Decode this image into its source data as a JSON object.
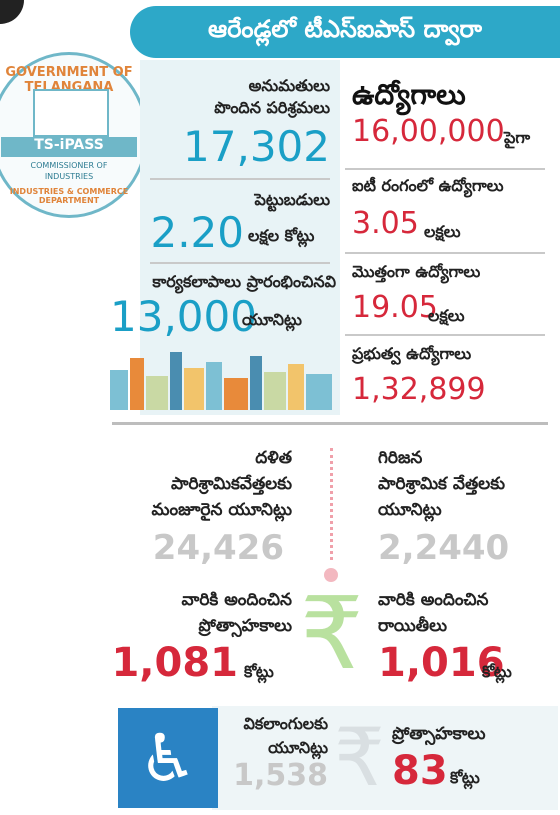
{
  "header": {
    "title": "ఆరేండ్లలో టీఎస్ఐపాస్ ద్వారా"
  },
  "seal": {
    "top": "GOVERNMENT OF TELANGANA",
    "name": "TS-iPASS",
    "sub1": "COMMISSIONER OF",
    "sub2": "INDUSTRIES",
    "bottom": "INDUSTRIES & COMMERCE DEPARTMENT"
  },
  "stats": {
    "approved_label1": "అనుమతులు",
    "approved_label2": "పొందిన పరిశ్రమలు",
    "approved_value": "17,302",
    "invest_label": "పెట్టుబడులు",
    "invest_value": "2.20",
    "invest_unit": "లక్షల కోట్లు",
    "started_label": "కార్యకలాపాలు ప్రారంభించినవి",
    "started_value": "13,000",
    "started_unit": "యూనిట్లు"
  },
  "jobs": {
    "title": "ఉద్యోగాలు",
    "jobs_value": "16,00,000",
    "jobs_unit": "పైగా",
    "it_label": "ఐటీ రంగంలో ఉద్యోగాలు",
    "it_value": "3.05",
    "it_unit": "లక్షలు",
    "total_label": "మొత్తంగా ఉద్యోగాలు",
    "total_value": "19.05",
    "total_unit": "లక్షలు",
    "gov_label": "ప్రభుత్వ ఉద్యోగాలు",
    "gov_value": "1,32,899"
  },
  "dalit": {
    "label1": "దళిత",
    "label2": "పారిశ్రామికవేత్తలకు",
    "label3": "మంజూరైన యూనిట్లు",
    "units": "24,426",
    "incent_label1": "వారికి అందించిన",
    "incent_label2": "ప్రోత్సాహకాలు",
    "incent_value": "1,081",
    "incent_unit": "కోట్లు"
  },
  "tribal": {
    "label1": "గిరిజన",
    "label2": "పారిశ్రామిక వేత్తలకు",
    "label3": "యూనిట్లు",
    "units": "2,2440",
    "incent_label1": "వారికి అందించిన",
    "incent_label2": "రాయితీలు",
    "incent_value": "1,016",
    "incent_unit": "కోట్లు"
  },
  "disabled": {
    "label1": "వికలాంగులకు",
    "label2": "యూనిట్లు",
    "units": "1,538",
    "incent_label": "ప్రోత్సాహకాలు",
    "incent_value": "83",
    "incent_unit": "కోట్లు"
  },
  "colors": {
    "teal": "#2da8c8",
    "red": "#d6283b",
    "green": "#7dc05a",
    "blue": "#2a83c4"
  }
}
